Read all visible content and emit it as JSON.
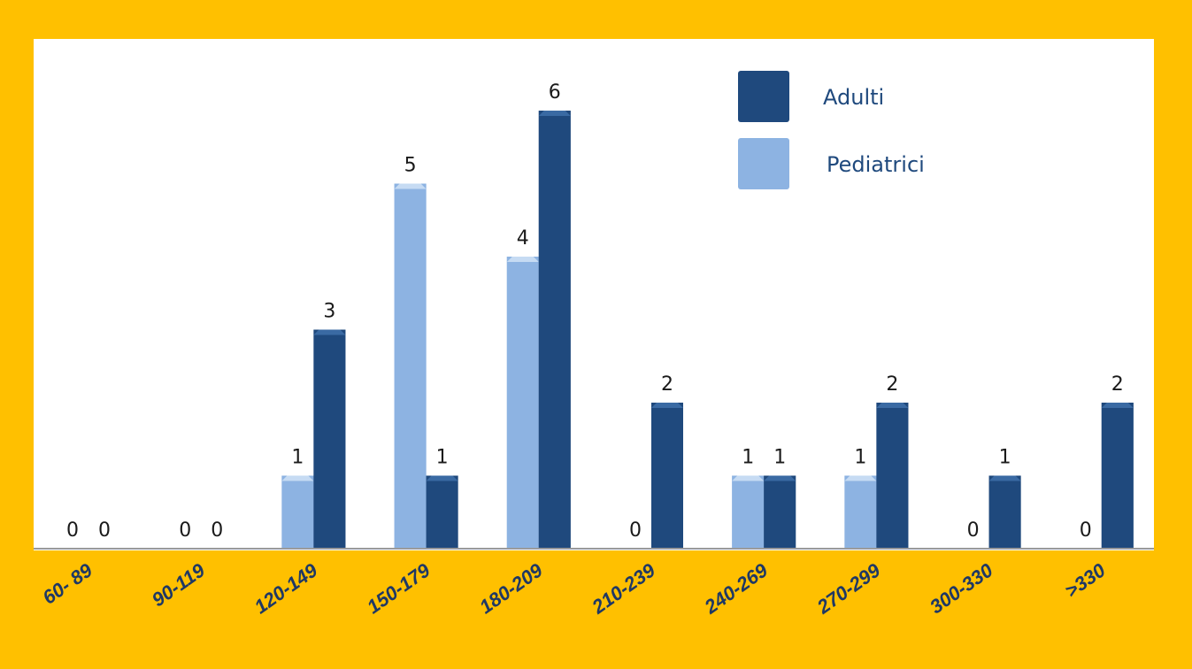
{
  "chart_data": {
    "type": "bar",
    "categories": [
      "60- 89",
      "90-119",
      "120-149",
      "150-179",
      "180-209",
      "210-239",
      "240-269",
      "270-299",
      "300-330",
      ">330"
    ],
    "series": [
      {
        "name": "Pediatrici",
        "values": [
          0,
          0,
          1,
          5,
          4,
          0,
          1,
          1,
          0,
          0
        ],
        "color": "#8db3e2"
      },
      {
        "name": "Adulti",
        "values": [
          0,
          0,
          3,
          1,
          6,
          2,
          1,
          2,
          1,
          2
        ],
        "color": "#1f497d"
      }
    ],
    "ylim": [
      0,
      6
    ],
    "grid": false,
    "legend_position": "top-right",
    "legend_order": [
      "Adulti",
      "Pediatrici"
    ],
    "xlabel": "",
    "ylabel": "",
    "title": ""
  },
  "colors": {
    "background": "#ffc000",
    "plot_area": "#ffffff",
    "tick_text": "#1f3864",
    "legend_text": "#1f497d"
  }
}
